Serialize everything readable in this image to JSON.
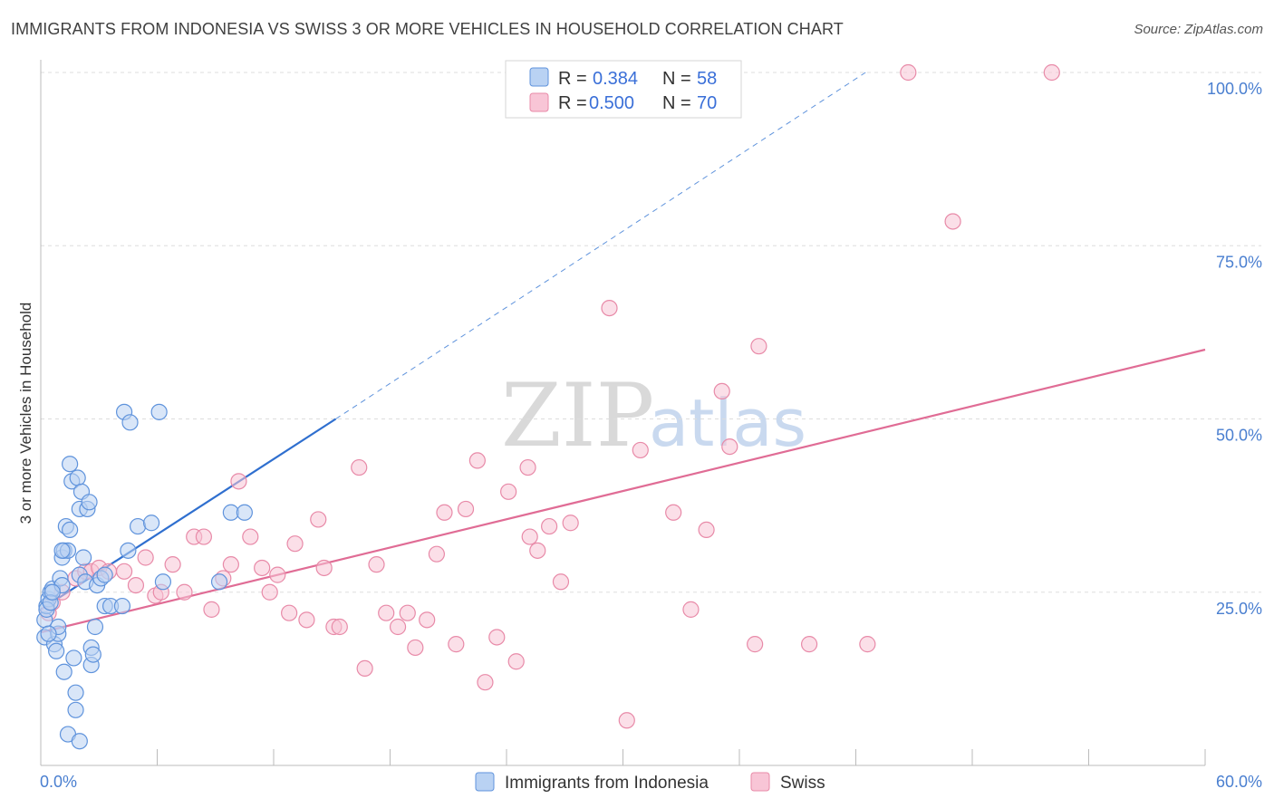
{
  "header": {
    "title": "IMMIGRANTS FROM INDONESIA VS SWISS 3 OR MORE VEHICLES IN HOUSEHOLD CORRELATION CHART",
    "source": "Source: ZipAtlas.com"
  },
  "watermark": {
    "zip": "ZIP",
    "atlas": "atlas"
  },
  "legend_top": [
    {
      "r_label": "R = ",
      "r_value": "0.384",
      "n_label": "N = ",
      "n_value": "58"
    },
    {
      "r_label": "R = ",
      "r_value": "0.500",
      "n_label": "N = ",
      "n_value": "70"
    }
  ],
  "colors": {
    "indonesia_fill": "#b9d2f3",
    "indonesia_stroke": "#5f93dc",
    "indonesia_line": "#2f6fcf",
    "swiss_fill": "#f8c5d6",
    "swiss_stroke": "#e88aa8",
    "swiss_line": "#e06c95",
    "grid": "#dddddd",
    "axis_label": "#4a7fd0"
  },
  "chart_data": {
    "type": "scatter",
    "title": "IMMIGRANTS FROM INDONESIA VS SWISS 3 OR MORE VEHICLES IN HOUSEHOLD CORRELATION CHART",
    "xlabel": "",
    "ylabel": "3 or more Vehicles in Household",
    "xlim": [
      0,
      60
    ],
    "ylim": [
      0,
      100
    ],
    "x_tick_labels": [
      "0.0%",
      "60.0%"
    ],
    "y_ticks": [
      25,
      50,
      75,
      100
    ],
    "y_tick_labels": [
      "25.0%",
      "50.0%",
      "75.0%",
      "100.0%"
    ],
    "legend_position": "bottom-center",
    "series": [
      {
        "name": "Immigrants from Indonesia",
        "R": 0.384,
        "N": 58,
        "trend": {
          "x0": 0,
          "y0": 22.5,
          "x1": 15.2,
          "y1": 50.0,
          "dash_x1": 42.5,
          "dash_y1": 100
        },
        "points": [
          [
            0.2,
            18.5
          ],
          [
            0.2,
            21
          ],
          [
            0.3,
            23
          ],
          [
            0.4,
            24
          ],
          [
            0.3,
            22.5
          ],
          [
            0.5,
            25
          ],
          [
            0.6,
            25.5
          ],
          [
            0.5,
            23.5
          ],
          [
            0.7,
            17.5
          ],
          [
            0.8,
            16.5
          ],
          [
            0.9,
            19
          ],
          [
            0.9,
            20
          ],
          [
            1.0,
            27
          ],
          [
            1.1,
            26
          ],
          [
            1.2,
            13.5
          ],
          [
            1.1,
            30
          ],
          [
            1.2,
            31
          ],
          [
            1.3,
            34.5
          ],
          [
            1.4,
            31
          ],
          [
            1.5,
            34
          ],
          [
            1.5,
            43.5
          ],
          [
            1.6,
            41
          ],
          [
            1.7,
            15.5
          ],
          [
            1.8,
            10.5
          ],
          [
            1.8,
            8
          ],
          [
            1.9,
            41.5
          ],
          [
            2.0,
            37
          ],
          [
            2.0,
            27.5
          ],
          [
            2.1,
            39.5
          ],
          [
            2.2,
            30
          ],
          [
            2.3,
            26.5
          ],
          [
            2.4,
            37
          ],
          [
            2.5,
            38
          ],
          [
            2.6,
            14.5
          ],
          [
            2.6,
            17
          ],
          [
            2.7,
            16
          ],
          [
            2.8,
            20
          ],
          [
            2.9,
            26
          ],
          [
            3.1,
            27
          ],
          [
            3.3,
            27.5
          ],
          [
            3.3,
            23
          ],
          [
            3.6,
            23
          ],
          [
            4.2,
            23
          ],
          [
            4.3,
            51
          ],
          [
            4.5,
            31
          ],
          [
            4.6,
            49.5
          ],
          [
            5.0,
            34.5
          ],
          [
            5.7,
            35
          ],
          [
            6.1,
            51
          ],
          [
            6.3,
            26.5
          ],
          [
            9.2,
            26.5
          ],
          [
            9.8,
            36.5
          ],
          [
            10.5,
            36.5
          ],
          [
            1.4,
            4.5
          ],
          [
            2.0,
            3.5
          ],
          [
            0.6,
            25
          ],
          [
            1.1,
            31
          ],
          [
            0.4,
            19
          ]
        ]
      },
      {
        "name": "Swiss",
        "R": 0.5,
        "N": 70,
        "trend": {
          "x0": 0,
          "y0": 19.2,
          "x1": 60,
          "y1": 60.0
        },
        "points": [
          [
            0.4,
            22
          ],
          [
            0.6,
            23.5
          ],
          [
            1.1,
            25
          ],
          [
            1.8,
            27
          ],
          [
            2.3,
            28
          ],
          [
            2.6,
            28
          ],
          [
            3.0,
            28.5
          ],
          [
            3.5,
            28
          ],
          [
            4.3,
            28
          ],
          [
            4.9,
            26
          ],
          [
            5.4,
            30
          ],
          [
            5.9,
            24.5
          ],
          [
            6.2,
            25
          ],
          [
            6.8,
            29
          ],
          [
            7.4,
            25
          ],
          [
            7.9,
            33
          ],
          [
            8.4,
            33
          ],
          [
            8.8,
            22.5
          ],
          [
            9.4,
            27
          ],
          [
            9.8,
            29
          ],
          [
            10.2,
            41
          ],
          [
            10.8,
            33
          ],
          [
            11.4,
            28.5
          ],
          [
            11.8,
            25
          ],
          [
            12.2,
            27.5
          ],
          [
            12.8,
            22
          ],
          [
            13.1,
            32
          ],
          [
            13.7,
            21
          ],
          [
            14.3,
            35.5
          ],
          [
            14.6,
            28.5
          ],
          [
            15.1,
            20
          ],
          [
            15.4,
            20
          ],
          [
            16.4,
            43
          ],
          [
            16.7,
            14
          ],
          [
            17.3,
            29
          ],
          [
            17.8,
            22
          ],
          [
            18.4,
            20
          ],
          [
            18.9,
            22
          ],
          [
            19.3,
            17
          ],
          [
            19.9,
            21
          ],
          [
            20.4,
            30.5
          ],
          [
            20.8,
            36.5
          ],
          [
            21.4,
            17.5
          ],
          [
            21.9,
            37
          ],
          [
            22.5,
            44
          ],
          [
            22.9,
            12
          ],
          [
            23.5,
            18.5
          ],
          [
            24.1,
            39.5
          ],
          [
            24.5,
            15
          ],
          [
            25.1,
            43
          ],
          [
            25.6,
            31
          ],
          [
            26.2,
            34.5
          ],
          [
            26.8,
            26.5
          ],
          [
            27.3,
            35
          ],
          [
            29.3,
            66
          ],
          [
            30.2,
            6.5
          ],
          [
            30.9,
            45.5
          ],
          [
            32.6,
            36.5
          ],
          [
            33.5,
            22.5
          ],
          [
            34.3,
            34
          ],
          [
            35.1,
            54
          ],
          [
            35.5,
            46
          ],
          [
            36.8,
            17.5
          ],
          [
            37.0,
            60.5
          ],
          [
            39.6,
            17.5
          ],
          [
            42.6,
            17.5
          ],
          [
            44.7,
            100
          ],
          [
            47.0,
            78.5
          ],
          [
            52.1,
            100
          ],
          [
            25.2,
            33
          ]
        ]
      }
    ]
  }
}
